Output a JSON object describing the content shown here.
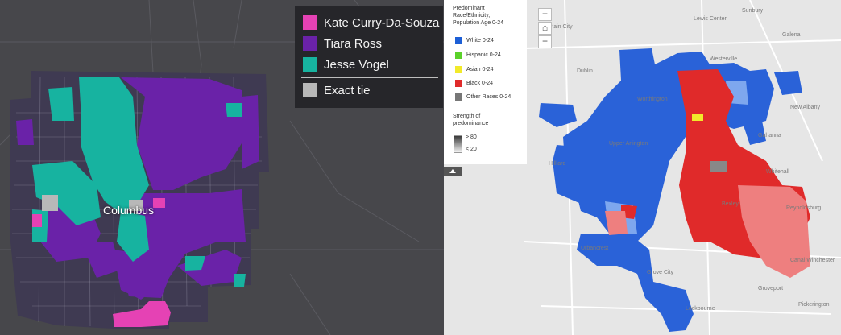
{
  "left_map": {
    "city_label": "Columbus",
    "colors": {
      "background": "#47474b",
      "county": "#3f3a52",
      "kate": "#e542b4",
      "tiara": "#6a22a8",
      "jesse": "#17b3a0",
      "tie": "#b8b8b8"
    },
    "legend": [
      {
        "label": "Kate Curry-Da-Souza",
        "color": "#e542b4"
      },
      {
        "label": "Tiara Ross",
        "color": "#6a22a8"
      },
      {
        "label": "Jesse Vogel",
        "color": "#17b3a0"
      },
      {
        "label": "Exact tie",
        "color": "#b8b8b8"
      }
    ]
  },
  "right_map": {
    "legend_title": "Predominant Race/Ethnicity, Population Age 0-24",
    "legend": [
      {
        "label": "White 0-24",
        "color": "#1d5fd6"
      },
      {
        "label": "Hispanic 0-24",
        "color": "#5bd12a"
      },
      {
        "label": "Asian 0-24",
        "color": "#f2ea2a"
      },
      {
        "label": "Black 0-24",
        "color": "#e02a2a"
      },
      {
        "label": "Other Races 0-24",
        "color": "#777777"
      }
    ],
    "strength_title": "Strength of predominance",
    "strength_high": "> 80",
    "strength_low": "< 20",
    "zoom_in": "+",
    "home": "⌂",
    "zoom_out": "−",
    "place_labels": [
      "Westerville",
      "Dublin",
      "Hilliard",
      "Gahanna",
      "Grove City",
      "Reynoldsburg",
      "Bexley",
      "Worthington",
      "Groveport",
      "Canal Winchester",
      "Urbancrest",
      "New Albany",
      "Plain City",
      "Lockbourne",
      "Whitehall",
      "Upper Arlington",
      "Lewis Center",
      "Galena",
      "Sunbury",
      "Pickerington"
    ]
  }
}
